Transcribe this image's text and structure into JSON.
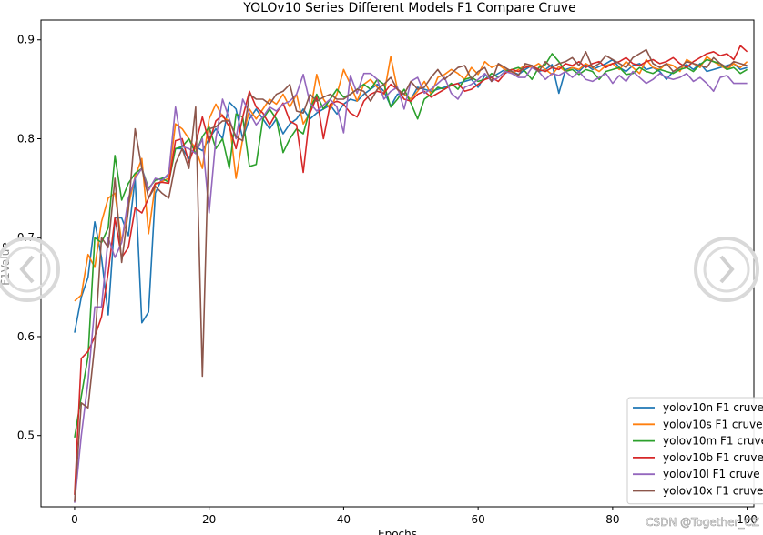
{
  "chart_data": {
    "type": "line",
    "title": "YOLOv10 Series Different Models F1 Compare Cruve",
    "xlabel": "Epochs",
    "ylabel": "F1Value",
    "xlim": [
      -5,
      101
    ],
    "ylim": [
      0.428,
      0.92
    ],
    "xticks": [
      0,
      20,
      40,
      60,
      80,
      100
    ],
    "yticks": [
      0.5,
      0.6,
      0.7,
      0.8,
      0.9
    ],
    "legend_position": "lower-right",
    "grid": false,
    "series": [
      {
        "name": "yolov10n F1 cruve",
        "color": "#1f77b4",
        "values": [
          0.604,
          0.64,
          0.66,
          0.716,
          0.68,
          0.622,
          0.72,
          0.72,
          0.702,
          0.76,
          0.614,
          0.625,
          0.745,
          0.76,
          0.762,
          0.79,
          0.79,
          0.78,
          0.792,
          0.788,
          0.8,
          0.81,
          0.8,
          0.837,
          0.83,
          0.8,
          0.82,
          0.83,
          0.82,
          0.81,
          0.82,
          0.805,
          0.815,
          0.82,
          0.83,
          0.82,
          0.826,
          0.83,
          0.834,
          0.825,
          0.835,
          0.84,
          0.838,
          0.845,
          0.85,
          0.855,
          0.848,
          0.833,
          0.845,
          0.845,
          0.84,
          0.852,
          0.85,
          0.848,
          0.85,
          0.852,
          0.854,
          0.856,
          0.858,
          0.86,
          0.852,
          0.864,
          0.862,
          0.866,
          0.87,
          0.868,
          0.865,
          0.87,
          0.874,
          0.868,
          0.87,
          0.875,
          0.846,
          0.87,
          0.872,
          0.868,
          0.875,
          0.87,
          0.873,
          0.876,
          0.88,
          0.872,
          0.868,
          0.874,
          0.876,
          0.87,
          0.872,
          0.868,
          0.86,
          0.868,
          0.872,
          0.875,
          0.87,
          0.876,
          0.868,
          0.87,
          0.872,
          0.874,
          0.876,
          0.87,
          0.872
        ]
      },
      {
        "name": "yolov10s F1 cruve",
        "color": "#ff7f0e",
        "values": [
          0.636,
          0.642,
          0.683,
          0.67,
          0.716,
          0.74,
          0.745,
          0.695,
          0.732,
          0.762,
          0.78,
          0.704,
          0.754,
          0.757,
          0.76,
          0.815,
          0.81,
          0.8,
          0.79,
          0.77,
          0.82,
          0.835,
          0.822,
          0.818,
          0.76,
          0.8,
          0.83,
          0.82,
          0.83,
          0.84,
          0.835,
          0.845,
          0.832,
          0.845,
          0.815,
          0.826,
          0.865,
          0.84,
          0.83,
          0.845,
          0.87,
          0.855,
          0.838,
          0.855,
          0.86,
          0.852,
          0.845,
          0.883,
          0.85,
          0.845,
          0.84,
          0.848,
          0.858,
          0.845,
          0.862,
          0.865,
          0.87,
          0.866,
          0.86,
          0.872,
          0.865,
          0.878,
          0.872,
          0.875,
          0.87,
          0.866,
          0.87,
          0.874,
          0.872,
          0.876,
          0.87,
          0.865,
          0.873,
          0.868,
          0.872,
          0.87,
          0.876,
          0.872,
          0.868,
          0.874,
          0.876,
          0.87,
          0.878,
          0.872,
          0.866,
          0.88,
          0.872,
          0.87,
          0.876,
          0.874,
          0.868,
          0.88,
          0.876,
          0.872,
          0.883,
          0.878,
          0.874,
          0.87,
          0.876,
          0.872,
          0.878
        ]
      },
      {
        "name": "yolov10m F1 cruve",
        "color": "#2ca02c",
        "values": [
          0.498,
          0.54,
          0.58,
          0.7,
          0.695,
          0.71,
          0.783,
          0.738,
          0.755,
          0.765,
          0.77,
          0.75,
          0.758,
          0.76,
          0.756,
          0.79,
          0.792,
          0.8,
          0.785,
          0.802,
          0.812,
          0.79,
          0.8,
          0.77,
          0.825,
          0.822,
          0.772,
          0.774,
          0.82,
          0.83,
          0.82,
          0.786,
          0.8,
          0.81,
          0.805,
          0.83,
          0.845,
          0.83,
          0.84,
          0.85,
          0.842,
          0.845,
          0.85,
          0.855,
          0.85,
          0.86,
          0.855,
          0.832,
          0.84,
          0.85,
          0.836,
          0.82,
          0.84,
          0.845,
          0.852,
          0.85,
          0.856,
          0.85,
          0.86,
          0.862,
          0.858,
          0.86,
          0.866,
          0.862,
          0.868,
          0.87,
          0.872,
          0.868,
          0.86,
          0.872,
          0.875,
          0.886,
          0.878,
          0.868,
          0.87,
          0.865,
          0.87,
          0.868,
          0.86,
          0.868,
          0.87,
          0.872,
          0.865,
          0.866,
          0.872,
          0.868,
          0.866,
          0.87,
          0.868,
          0.866,
          0.87,
          0.872,
          0.868,
          0.875,
          0.88,
          0.878,
          0.876,
          0.87,
          0.872,
          0.866,
          0.87
        ]
      },
      {
        "name": "yolov10b F1 cruve",
        "color": "#d62728",
        "values": [
          0.44,
          0.578,
          0.585,
          0.6,
          0.62,
          0.665,
          0.72,
          0.68,
          0.69,
          0.73,
          0.725,
          0.74,
          0.755,
          0.756,
          0.755,
          0.798,
          0.8,
          0.776,
          0.795,
          0.822,
          0.796,
          0.818,
          0.824,
          0.812,
          0.79,
          0.822,
          0.848,
          0.832,
          0.826,
          0.814,
          0.826,
          0.836,
          0.818,
          0.814,
          0.766,
          0.826,
          0.842,
          0.8,
          0.835,
          0.838,
          0.835,
          0.826,
          0.822,
          0.838,
          0.845,
          0.848,
          0.846,
          0.855,
          0.85,
          0.84,
          0.838,
          0.845,
          0.848,
          0.842,
          0.846,
          0.85,
          0.854,
          0.856,
          0.848,
          0.85,
          0.855,
          0.86,
          0.862,
          0.858,
          0.866,
          0.87,
          0.868,
          0.872,
          0.874,
          0.87,
          0.868,
          0.872,
          0.87,
          0.876,
          0.874,
          0.878,
          0.872,
          0.876,
          0.878,
          0.872,
          0.876,
          0.878,
          0.882,
          0.876,
          0.874,
          0.878,
          0.88,
          0.876,
          0.878,
          0.882,
          0.876,
          0.872,
          0.878,
          0.882,
          0.886,
          0.888,
          0.884,
          0.886,
          0.88,
          0.894,
          0.888
        ]
      },
      {
        "name": "yolov10l F1 cruve",
        "color": "#9467bd",
        "values": [
          0.432,
          0.5,
          0.555,
          0.63,
          0.63,
          0.7,
          0.68,
          0.695,
          0.74,
          0.76,
          0.77,
          0.748,
          0.76,
          0.758,
          0.765,
          0.832,
          0.792,
          0.79,
          0.785,
          0.8,
          0.725,
          0.8,
          0.84,
          0.82,
          0.8,
          0.84,
          0.826,
          0.814,
          0.822,
          0.832,
          0.828,
          0.835,
          0.838,
          0.845,
          0.865,
          0.836,
          0.828,
          0.834,
          0.84,
          0.832,
          0.806,
          0.864,
          0.846,
          0.866,
          0.866,
          0.86,
          0.84,
          0.848,
          0.852,
          0.83,
          0.858,
          0.862,
          0.846,
          0.85,
          0.856,
          0.862,
          0.846,
          0.84,
          0.852,
          0.855,
          0.86,
          0.866,
          0.858,
          0.862,
          0.868,
          0.866,
          0.862,
          0.862,
          0.872,
          0.868,
          0.86,
          0.866,
          0.864,
          0.868,
          0.862,
          0.868,
          0.86,
          0.858,
          0.862,
          0.866,
          0.856,
          0.864,
          0.858,
          0.868,
          0.862,
          0.856,
          0.86,
          0.866,
          0.862,
          0.86,
          0.862,
          0.866,
          0.858,
          0.862,
          0.856,
          0.848,
          0.862,
          0.864,
          0.856,
          0.856,
          0.856
        ]
      },
      {
        "name": "yolov10x F1 cruve",
        "color": "#8c564b",
        "values": [
          0.433,
          0.533,
          0.528,
          0.592,
          0.7,
          0.69,
          0.76,
          0.675,
          0.728,
          0.81,
          0.77,
          0.74,
          0.752,
          0.745,
          0.74,
          0.775,
          0.79,
          0.77,
          0.832,
          0.56,
          0.81,
          0.812,
          0.818,
          0.818,
          0.802,
          0.798,
          0.845,
          0.84,
          0.84,
          0.835,
          0.845,
          0.848,
          0.855,
          0.828,
          0.826,
          0.845,
          0.838,
          0.842,
          0.845,
          0.84,
          0.84,
          0.845,
          0.85,
          0.848,
          0.838,
          0.85,
          0.855,
          0.862,
          0.85,
          0.845,
          0.858,
          0.85,
          0.852,
          0.862,
          0.87,
          0.86,
          0.866,
          0.872,
          0.874,
          0.86,
          0.868,
          0.872,
          0.858,
          0.876,
          0.872,
          0.868,
          0.864,
          0.876,
          0.874,
          0.868,
          0.878,
          0.872,
          0.876,
          0.878,
          0.882,
          0.874,
          0.888,
          0.872,
          0.876,
          0.884,
          0.88,
          0.876,
          0.872,
          0.882,
          0.886,
          0.89,
          0.876,
          0.872,
          0.876,
          0.868,
          0.872,
          0.878,
          0.876,
          0.874,
          0.872,
          0.882,
          0.876,
          0.872,
          0.878,
          0.876,
          0.874
        ]
      }
    ]
  },
  "watermark": "CSDN @Together_CZ",
  "overlay": {
    "prev_icon": "chevron-left-icon",
    "next_icon": "chevron-right-icon"
  }
}
